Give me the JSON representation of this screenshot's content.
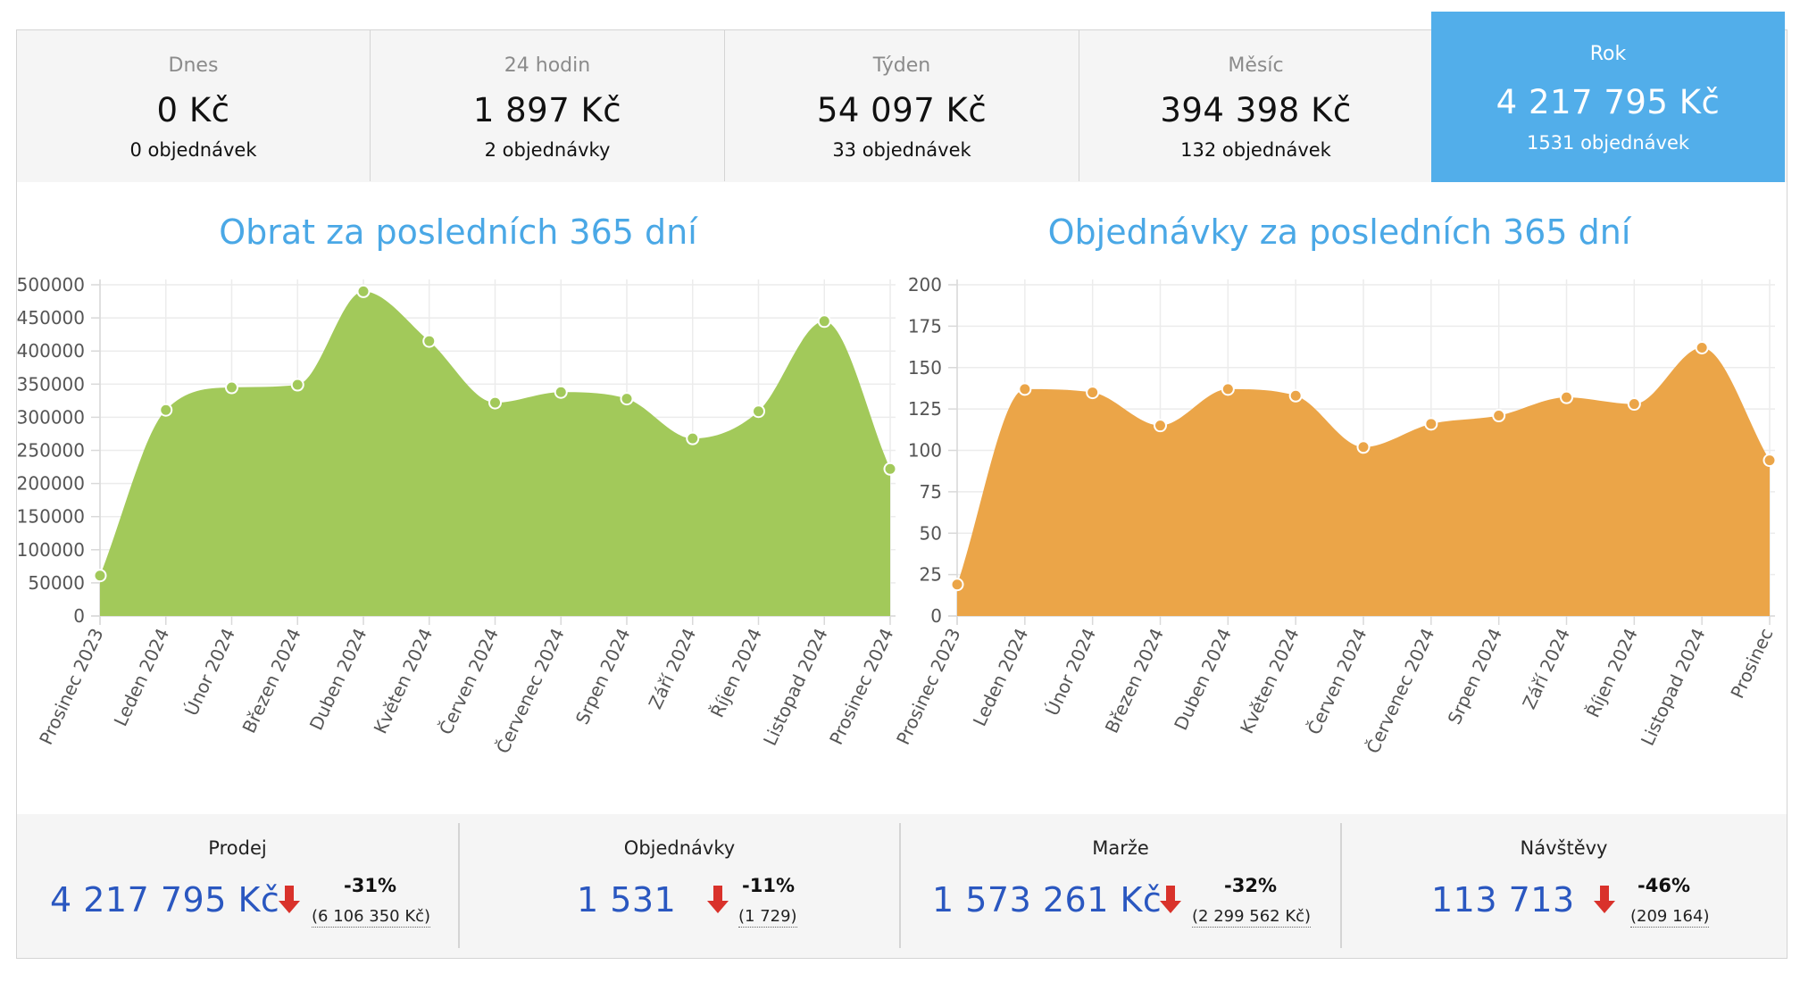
{
  "tabs": [
    {
      "name": "Dnes",
      "amount": "0 Kč",
      "orders": "0 objednávek"
    },
    {
      "name": "24 hodin",
      "amount": "1 897 Kč",
      "orders": "2 objednávky"
    },
    {
      "name": "Týden",
      "amount": "54 097 Kč",
      "orders": "33 objednávek"
    },
    {
      "name": "Měsíc",
      "amount": "394 398 Kč",
      "orders": "132 objednávek"
    }
  ],
  "active_tab": {
    "name": "Rok",
    "amount": "4 217 795 Kč",
    "orders": "1531 objednávek"
  },
  "colors": {
    "accent": "#52aeea",
    "title": "#4aa8e6",
    "revenue_fill": "#a2c95a",
    "orders_fill": "#eba548",
    "value_blue": "#2a57c0",
    "arrow_red": "#d9322b"
  },
  "chart_data": [
    {
      "type": "area",
      "title": "Obrat za posledních 365 dní",
      "x": [
        "Prosinec 2023",
        "Leden 2024",
        "Únor 2024",
        "Březen 2024",
        "Duben 2024",
        "Květen 2024",
        "Červen 2024",
        "Červenec 2024",
        "Srpen 2024",
        "Září 2024",
        "Říjen 2024",
        "Listopad 2024",
        "Prosinec 2024"
      ],
      "y": [
        61000,
        311000,
        345000,
        349000,
        490000,
        415000,
        322000,
        338000,
        328000,
        268000,
        309000,
        445000,
        222000
      ],
      "ylim": [
        0,
        500000
      ],
      "yticks": [
        "0",
        "50000",
        "100000",
        "150000",
        "200000",
        "250000",
        "300000",
        "350000",
        "400000",
        "450000",
        "500000"
      ],
      "grid": true,
      "color": "#a2c95a"
    },
    {
      "type": "area",
      "title": "Objednávky za posledních 365 dní",
      "x": [
        "Prosinec 2023",
        "Leden 2024",
        "Únor 2024",
        "Březen 2024",
        "Duben 2024",
        "Květen 2024",
        "Červen 2024",
        "Červenec 2024",
        "Srpen 2024",
        "Září 2024",
        "Říjen 2024",
        "Listopad 2024",
        "Prosinec"
      ],
      "y": [
        19,
        137,
        135,
        115,
        137,
        133,
        102,
        116,
        121,
        132,
        128,
        162,
        94
      ],
      "ylim": [
        0,
        200
      ],
      "yticks": [
        "0",
        "25",
        "50",
        "75",
        "100",
        "125",
        "150",
        "175",
        "200"
      ],
      "grid": true,
      "color": "#eba548"
    }
  ],
  "stats": [
    {
      "label": "Prodej",
      "value": "4 217 795 Kč",
      "change": "-31%",
      "previous": "(6 106 350 Kč)"
    },
    {
      "label": "Objednávky",
      "value": "1 531",
      "change": "-11%",
      "previous": "(1 729)"
    },
    {
      "label": "Marže",
      "value": "1 573 261 Kč",
      "change": "-32%",
      "previous": "(2 299 562 Kč)"
    },
    {
      "label": "Návštěvy",
      "value": "113 713",
      "change": "-46%",
      "previous": "(209 164)"
    }
  ]
}
